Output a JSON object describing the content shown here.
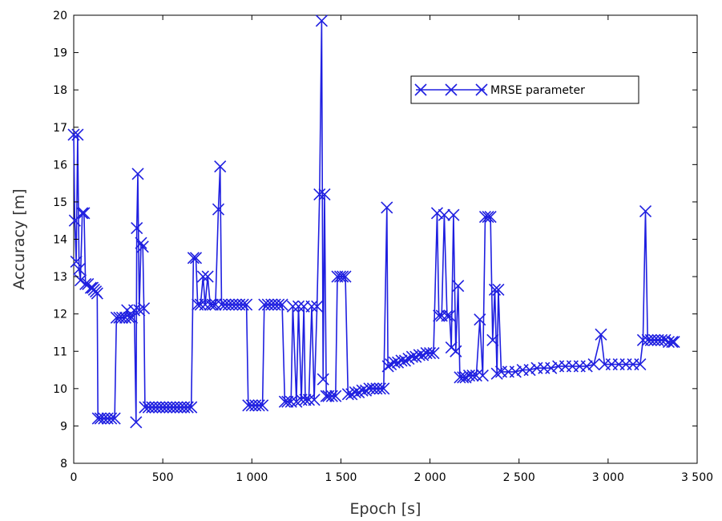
{
  "chart_data": {
    "type": "line",
    "xlabel": "Epoch [s]",
    "ylabel": "Accuracy [m]",
    "xlim": [
      0,
      3500
    ],
    "ylim": [
      8,
      20
    ],
    "xticks": [
      0,
      500,
      1000,
      1500,
      2000,
      2500,
      3000,
      3500
    ],
    "xtick_labels": [
      "0",
      "500",
      "1 000",
      "1 500",
      "2 000",
      "2 500",
      "3 000",
      "3 500"
    ],
    "yticks": [
      8,
      9,
      10,
      11,
      12,
      13,
      14,
      15,
      16,
      17,
      18,
      19,
      20
    ],
    "ytick_labels": [
      "8",
      "9",
      "10",
      "11",
      "12",
      "13",
      "14",
      "15",
      "16",
      "17",
      "18",
      "19",
      "20"
    ],
    "grid": false,
    "legend_position": "upper-right",
    "colors": {
      "series": "#1f1fe0",
      "axis": "#000000"
    },
    "series": [
      {
        "name": "MRSE parameter",
        "marker": "x",
        "points": [
          [
            0,
            16.8
          ],
          [
            6,
            14.5
          ],
          [
            14,
            13.4
          ],
          [
            22,
            16.8
          ],
          [
            30,
            13.2
          ],
          [
            38,
            12.9
          ],
          [
            48,
            14.7
          ],
          [
            58,
            14.7
          ],
          [
            66,
            12.8
          ],
          [
            80,
            12.8
          ],
          [
            96,
            12.7
          ],
          [
            106,
            12.7
          ],
          [
            114,
            12.65
          ],
          [
            124,
            12.6
          ],
          [
            132,
            12.55
          ],
          [
            136,
            9.2
          ],
          [
            150,
            9.2
          ],
          [
            170,
            9.2
          ],
          [
            190,
            9.2
          ],
          [
            210,
            9.2
          ],
          [
            230,
            9.2
          ],
          [
            240,
            11.9
          ],
          [
            256,
            11.9
          ],
          [
            272,
            11.9
          ],
          [
            290,
            11.9
          ],
          [
            300,
            12.1
          ],
          [
            312,
            11.9
          ],
          [
            326,
            11.9
          ],
          [
            340,
            12.1
          ],
          [
            350,
            9.1
          ],
          [
            354,
            14.3
          ],
          [
            360,
            15.75
          ],
          [
            368,
            12.1
          ],
          [
            378,
            13.9
          ],
          [
            388,
            13.8
          ],
          [
            394,
            12.15
          ],
          [
            400,
            9.5
          ],
          [
            420,
            9.5
          ],
          [
            440,
            9.5
          ],
          [
            460,
            9.5
          ],
          [
            480,
            9.5
          ],
          [
            500,
            9.5
          ],
          [
            520,
            9.5
          ],
          [
            540,
            9.5
          ],
          [
            560,
            9.5
          ],
          [
            580,
            9.5
          ],
          [
            600,
            9.5
          ],
          [
            620,
            9.5
          ],
          [
            640,
            9.5
          ],
          [
            660,
            9.5
          ],
          [
            672,
            13.5
          ],
          [
            686,
            13.5
          ],
          [
            696,
            12.25
          ],
          [
            712,
            12.25
          ],
          [
            726,
            13.0
          ],
          [
            738,
            12.25
          ],
          [
            752,
            13.0
          ],
          [
            766,
            12.25
          ],
          [
            780,
            12.25
          ],
          [
            796,
            12.25
          ],
          [
            812,
            14.8
          ],
          [
            822,
            15.95
          ],
          [
            830,
            12.25
          ],
          [
            850,
            12.25
          ],
          [
            870,
            12.25
          ],
          [
            890,
            12.25
          ],
          [
            910,
            12.25
          ],
          [
            930,
            12.25
          ],
          [
            950,
            12.25
          ],
          [
            970,
            12.25
          ],
          [
            980,
            9.55
          ],
          [
            1000,
            9.55
          ],
          [
            1020,
            9.55
          ],
          [
            1040,
            9.55
          ],
          [
            1060,
            9.55
          ],
          [
            1070,
            12.25
          ],
          [
            1090,
            12.25
          ],
          [
            1110,
            12.25
          ],
          [
            1130,
            12.25
          ],
          [
            1150,
            12.25
          ],
          [
            1170,
            12.25
          ],
          [
            1185,
            9.65
          ],
          [
            1200,
            9.65
          ],
          [
            1220,
            9.65
          ],
          [
            1230,
            12.2
          ],
          [
            1250,
            9.65
          ],
          [
            1262,
            12.2
          ],
          [
            1278,
            9.7
          ],
          [
            1292,
            12.2
          ],
          [
            1300,
            9.7
          ],
          [
            1320,
            9.7
          ],
          [
            1336,
            12.2
          ],
          [
            1350,
            9.7
          ],
          [
            1366,
            12.2
          ],
          [
            1380,
            15.2
          ],
          [
            1392,
            19.85
          ],
          [
            1400,
            10.25
          ],
          [
            1408,
            15.2
          ],
          [
            1418,
            9.8
          ],
          [
            1430,
            9.8
          ],
          [
            1450,
            9.8
          ],
          [
            1470,
            9.8
          ],
          [
            1480,
            13.0
          ],
          [
            1496,
            13.0
          ],
          [
            1510,
            13.0
          ],
          [
            1525,
            13.0
          ],
          [
            1540,
            9.85
          ],
          [
            1560,
            9.85
          ],
          [
            1580,
            9.9
          ],
          [
            1600,
            9.9
          ],
          [
            1620,
            9.95
          ],
          [
            1640,
            9.95
          ],
          [
            1660,
            10.0
          ],
          [
            1680,
            10.0
          ],
          [
            1700,
            10.0
          ],
          [
            1720,
            10.0
          ],
          [
            1740,
            10.0
          ],
          [
            1758,
            14.85
          ],
          [
            1764,
            10.6
          ],
          [
            1780,
            10.65
          ],
          [
            1800,
            10.7
          ],
          [
            1820,
            10.7
          ],
          [
            1840,
            10.75
          ],
          [
            1860,
            10.75
          ],
          [
            1880,
            10.8
          ],
          [
            1900,
            10.85
          ],
          [
            1920,
            10.85
          ],
          [
            1940,
            10.9
          ],
          [
            1960,
            10.9
          ],
          [
            1980,
            10.95
          ],
          [
            2000,
            10.95
          ],
          [
            2020,
            10.95
          ],
          [
            2040,
            14.7
          ],
          [
            2050,
            11.95
          ],
          [
            2066,
            11.95
          ],
          [
            2080,
            14.65
          ],
          [
            2096,
            11.95
          ],
          [
            2110,
            11.95
          ],
          [
            2120,
            11.1
          ],
          [
            2132,
            14.65
          ],
          [
            2145,
            11.0
          ],
          [
            2158,
            12.75
          ],
          [
            2168,
            10.3
          ],
          [
            2185,
            10.3
          ],
          [
            2200,
            10.3
          ],
          [
            2220,
            10.35
          ],
          [
            2240,
            10.35
          ],
          [
            2260,
            10.35
          ],
          [
            2280,
            11.85
          ],
          [
            2296,
            10.35
          ],
          [
            2310,
            14.6
          ],
          [
            2326,
            14.6
          ],
          [
            2340,
            14.6
          ],
          [
            2352,
            11.3
          ],
          [
            2364,
            12.65
          ],
          [
            2376,
            10.4
          ],
          [
            2384,
            12.65
          ],
          [
            2400,
            10.45
          ],
          [
            2440,
            10.45
          ],
          [
            2480,
            10.45
          ],
          [
            2520,
            10.5
          ],
          [
            2560,
            10.5
          ],
          [
            2600,
            10.55
          ],
          [
            2640,
            10.55
          ],
          [
            2680,
            10.55
          ],
          [
            2720,
            10.6
          ],
          [
            2760,
            10.6
          ],
          [
            2800,
            10.6
          ],
          [
            2840,
            10.6
          ],
          [
            2880,
            10.6
          ],
          [
            2920,
            10.65
          ],
          [
            2960,
            11.45
          ],
          [
            2980,
            10.65
          ],
          [
            3020,
            10.65
          ],
          [
            3060,
            10.65
          ],
          [
            3100,
            10.65
          ],
          [
            3140,
            10.65
          ],
          [
            3180,
            10.65
          ],
          [
            3196,
            11.3
          ],
          [
            3210,
            14.75
          ],
          [
            3222,
            11.3
          ],
          [
            3240,
            11.3
          ],
          [
            3260,
            11.3
          ],
          [
            3280,
            11.3
          ],
          [
            3300,
            11.3
          ],
          [
            3320,
            11.3
          ],
          [
            3340,
            11.25
          ],
          [
            3360,
            11.25
          ],
          [
            3370,
            11.25
          ]
        ]
      }
    ]
  }
}
